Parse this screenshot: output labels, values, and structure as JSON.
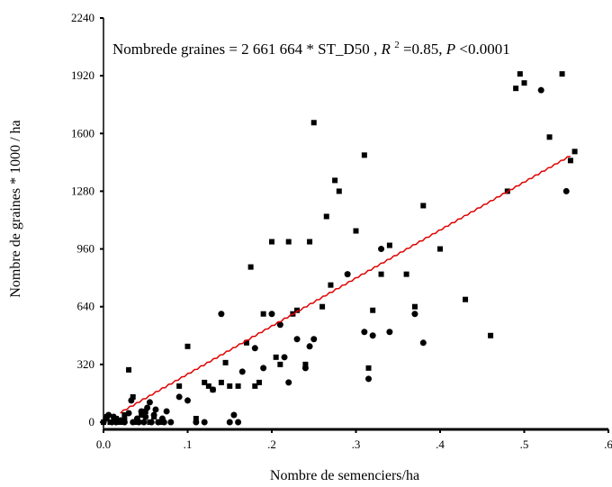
{
  "chart_data": {
    "type": "scatter",
    "xlabel": "Nombre  de semenciers/ha",
    "ylabel": "Nombre    de graines  * 1000 / ha",
    "xlim": [
      0,
      0.6
    ],
    "ylim": [
      -40,
      2240
    ],
    "x_ticks": [
      0,
      0.1,
      0.2,
      0.3,
      0.4,
      0.5,
      0.6
    ],
    "x_tick_labels": [
      "0.0",
      ".1",
      ".2",
      ".3",
      ".4",
      ".5",
      ".6"
    ],
    "y_ticks": [
      0,
      320,
      640,
      960,
      1280,
      1600,
      1920,
      2240
    ],
    "y_tick_labels": [
      "0",
      "320",
      "640",
      "960",
      "1280",
      "1600",
      "1920",
      "2240"
    ],
    "grid": false,
    "annotation": {
      "part1": "Nombrede graines = 2 661 664 *  ST_D50 ,  ",
      "r2_symbol": "R",
      "r2_exp": "2",
      "r2_value": " =0.85, ",
      "p_symbol": "P",
      "p_value": "<0.0001"
    },
    "fit_line": {
      "slope": 2661.664,
      "x_start": 0.02,
      "x_end": 0.555,
      "color": "#e00000"
    },
    "series": [
      {
        "marker": "circle",
        "color": "#000000",
        "x": [
          0.0,
          0.003,
          0.006,
          0.01,
          0.012,
          0.015,
          0.02,
          0.025,
          0.03,
          0.033,
          0.035,
          0.04,
          0.042,
          0.045,
          0.048,
          0.05,
          0.052,
          0.055,
          0.057,
          0.06,
          0.062,
          0.065,
          0.07,
          0.072,
          0.075,
          0.08,
          0.09,
          0.1,
          0.11,
          0.12,
          0.13,
          0.14,
          0.15,
          0.155,
          0.16,
          0.165,
          0.18,
          0.19,
          0.2,
          0.21,
          0.215,
          0.22,
          0.23,
          0.24,
          0.245,
          0.25,
          0.29,
          0.31,
          0.315,
          0.32,
          0.33,
          0.34,
          0.37,
          0.38,
          0.52,
          0.55
        ],
        "y": [
          0,
          20,
          40,
          0,
          30,
          0,
          10,
          0,
          50,
          120,
          0,
          20,
          0,
          60,
          0,
          30,
          80,
          110,
          0,
          40,
          70,
          0,
          20,
          0,
          60,
          0,
          140,
          120,
          0,
          0,
          180,
          600,
          0,
          40,
          0,
          280,
          410,
          300,
          600,
          540,
          360,
          220,
          460,
          300,
          420,
          460,
          820,
          500,
          240,
          480,
          960,
          500,
          600,
          440,
          1840,
          1280
        ]
      },
      {
        "marker": "square",
        "color": "#000000",
        "x": [
          0.0,
          0.004,
          0.008,
          0.015,
          0.02,
          0.025,
          0.03,
          0.04,
          0.045,
          0.05,
          0.055,
          0.06,
          0.07,
          0.09,
          0.1,
          0.11,
          0.12,
          0.125,
          0.13,
          0.14,
          0.145,
          0.15,
          0.16,
          0.17,
          0.175,
          0.18,
          0.185,
          0.19,
          0.2,
          0.205,
          0.21,
          0.22,
          0.225,
          0.23,
          0.24,
          0.245,
          0.25,
          0.26,
          0.265,
          0.27,
          0.275,
          0.28,
          0.3,
          0.31,
          0.315,
          0.32,
          0.33,
          0.34,
          0.36,
          0.37,
          0.38,
          0.4,
          0.43,
          0.46,
          0.48,
          0.49,
          0.495,
          0.5,
          0.53,
          0.545,
          0.555,
          0.56,
          0.025,
          0.035
        ],
        "y": [
          0,
          30,
          0,
          20,
          0,
          40,
          290,
          0,
          40,
          60,
          0,
          30,
          0,
          200,
          420,
          20,
          220,
          200,
          180,
          220,
          330,
          200,
          200,
          440,
          860,
          200,
          220,
          600,
          1000,
          360,
          320,
          1000,
          600,
          620,
          320,
          1000,
          1660,
          640,
          1140,
          760,
          1340,
          1280,
          1060,
          1480,
          300,
          620,
          820,
          980,
          820,
          640,
          1200,
          960,
          680,
          480,
          1280,
          1850,
          1930,
          1880,
          1580,
          1930,
          1450,
          1500,
          10,
          140
        ]
      }
    ]
  }
}
